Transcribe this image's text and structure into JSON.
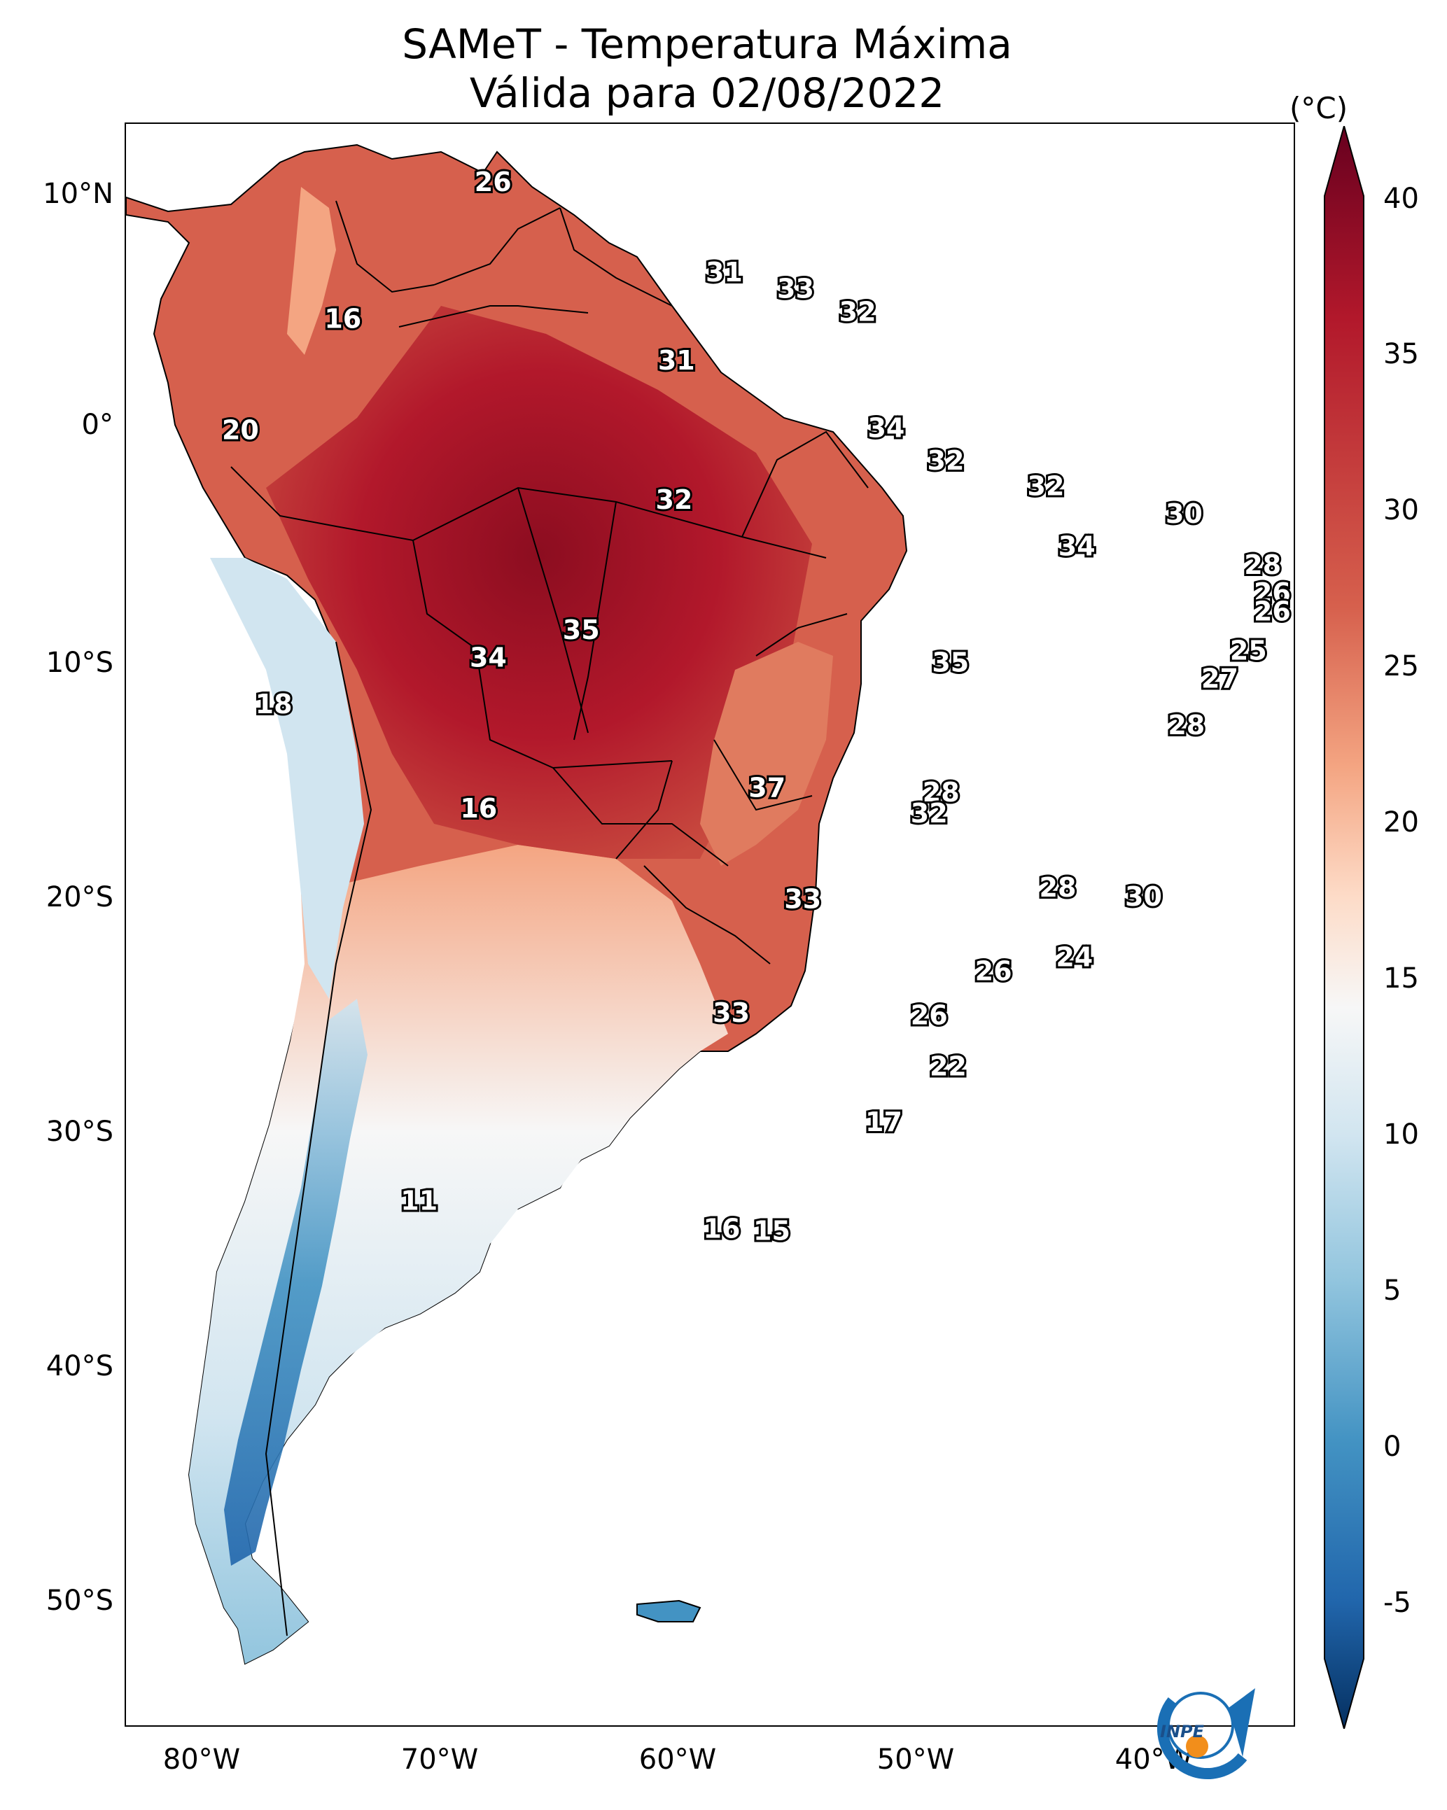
{
  "title": {
    "line1": "SAMeT - Temperatura Máxima",
    "line2": "Válida para 02/08/2022"
  },
  "colorbar": {
    "unit": "(°C)",
    "ticks": [
      "40",
      "35",
      "30",
      "25",
      "20",
      "15",
      "10",
      "5",
      "0",
      "-5"
    ],
    "min": -7,
    "max": 42,
    "colors": [
      "#053061",
      "#2166ac",
      "#4393c3",
      "#92c5de",
      "#d1e5f0",
      "#f7f7f7",
      "#fddbc7",
      "#f4a582",
      "#d6604d",
      "#b2182b",
      "#67001f"
    ]
  },
  "axes": {
    "lat_labels": [
      "10°N",
      "0°",
      "10°S",
      "20°S",
      "30°S",
      "40°S",
      "50°S"
    ],
    "lon_labels": [
      "80°W",
      "70°W",
      "60°W",
      "50°W",
      "40°W"
    ],
    "lon_range": [
      -83,
      -34
    ],
    "lat_range": [
      -56,
      13
    ]
  },
  "logo": {
    "text": "INPE"
  },
  "point_labels": [
    {
      "value": "26",
      "lon": -67.6,
      "lat": 10.5
    },
    {
      "value": "31",
      "lon": -57.9,
      "lat": 6.6
    },
    {
      "value": "33",
      "lon": -54.9,
      "lat": 5.9
    },
    {
      "value": "32",
      "lon": -52.3,
      "lat": 4.9
    },
    {
      "value": "16",
      "lon": -73.9,
      "lat": 4.6
    },
    {
      "value": "31",
      "lon": -59.9,
      "lat": 2.8
    },
    {
      "value": "20",
      "lon": -78.2,
      "lat": -0.2
    },
    {
      "value": "34",
      "lon": -51.1,
      "lat": -0.1
    },
    {
      "value": "32",
      "lon": -48.6,
      "lat": -1.5
    },
    {
      "value": "32",
      "lon": -44.4,
      "lat": -2.6
    },
    {
      "value": "32",
      "lon": -60.0,
      "lat": -3.2
    },
    {
      "value": "30",
      "lon": -38.6,
      "lat": -3.8
    },
    {
      "value": "34",
      "lon": -43.1,
      "lat": -5.2
    },
    {
      "value": "28",
      "lon": -35.3,
      "lat": -6.0
    },
    {
      "value": "26",
      "lon": -34.9,
      "lat": -7.2
    },
    {
      "value": "26",
      "lon": -34.9,
      "lat": -8.0
    },
    {
      "value": "35",
      "lon": -63.9,
      "lat": -8.8
    },
    {
      "value": "25",
      "lon": -35.9,
      "lat": -9.7
    },
    {
      "value": "34",
      "lon": -67.8,
      "lat": -10.0
    },
    {
      "value": "35",
      "lon": -48.4,
      "lat": -10.2
    },
    {
      "value": "27",
      "lon": -37.1,
      "lat": -10.9
    },
    {
      "value": "18",
      "lon": -76.8,
      "lat": -12.0
    },
    {
      "value": "28",
      "lon": -38.5,
      "lat": -12.9
    },
    {
      "value": "37",
      "lon": -56.1,
      "lat": -15.6
    },
    {
      "value": "28",
      "lon": -48.8,
      "lat": -15.8
    },
    {
      "value": "16",
      "lon": -68.2,
      "lat": -16.5
    },
    {
      "value": "32",
      "lon": -49.3,
      "lat": -16.7
    },
    {
      "value": "28",
      "lon": -43.9,
      "lat": -19.9
    },
    {
      "value": "30",
      "lon": -40.3,
      "lat": -20.3
    },
    {
      "value": "33",
      "lon": -54.6,
      "lat": -20.4
    },
    {
      "value": "24",
      "lon": -43.2,
      "lat": -22.9
    },
    {
      "value": "26",
      "lon": -46.6,
      "lat": -23.5
    },
    {
      "value": "33",
      "lon": -57.6,
      "lat": -25.3
    },
    {
      "value": "26",
      "lon": -49.3,
      "lat": -25.4
    },
    {
      "value": "22",
      "lon": -48.5,
      "lat": -27.6
    },
    {
      "value": "17",
      "lon": -51.2,
      "lat": -30.0
    },
    {
      "value": "11",
      "lon": -70.7,
      "lat": -33.4
    },
    {
      "value": "16",
      "lon": -58.0,
      "lat": -34.6
    },
    {
      "value": "15",
      "lon": -55.9,
      "lat": -34.7
    }
  ]
}
